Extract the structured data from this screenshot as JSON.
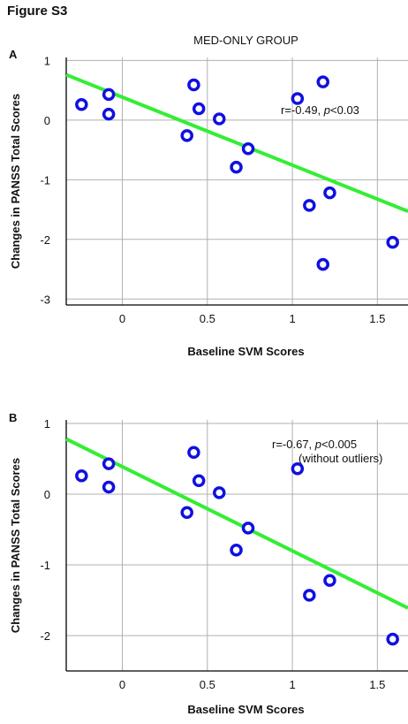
{
  "figure_title": "Figure S3",
  "colors": {
    "points": "#1010e0",
    "fit_line": "#33ee33",
    "grid": "#b0b0b0",
    "axis": "#000000"
  },
  "chart_data": [
    {
      "type": "scatter",
      "panel_label": "A",
      "title": "MED-ONLY GROUP",
      "xlabel": "Baseline SVM Scores",
      "ylabel": "Changes in PANSS Total Scores",
      "xlim": [
        -0.33,
        1.68
      ],
      "ylim": [
        -3.1,
        1.05
      ],
      "xticks": [
        0,
        0.5,
        1,
        1.5
      ],
      "xtick_labels": [
        "0",
        "0.5",
        "1",
        "1.5"
      ],
      "yticks": [
        1,
        0,
        -1,
        -2,
        -3
      ],
      "ytick_labels": [
        "1",
        "0",
        "-1",
        "-2",
        "-3"
      ],
      "grid": true,
      "points": [
        {
          "x": -0.24,
          "y": 0.26
        },
        {
          "x": -0.08,
          "y": 0.43
        },
        {
          "x": -0.08,
          "y": 0.1
        },
        {
          "x": 0.38,
          "y": -0.26
        },
        {
          "x": 0.42,
          "y": 0.59
        },
        {
          "x": 0.45,
          "y": 0.19
        },
        {
          "x": 0.57,
          "y": 0.02
        },
        {
          "x": 0.67,
          "y": -0.79
        },
        {
          "x": 0.74,
          "y": -0.48
        },
        {
          "x": 1.03,
          "y": 0.36
        },
        {
          "x": 1.1,
          "y": -1.43
        },
        {
          "x": 1.18,
          "y": 0.64
        },
        {
          "x": 1.18,
          "y": -2.42
        },
        {
          "x": 1.22,
          "y": -1.22
        },
        {
          "x": 1.59,
          "y": -2.05
        }
      ],
      "fit_line": {
        "x": [
          -0.33,
          1.68
        ],
        "y": [
          0.76,
          -1.53
        ]
      },
      "annotation": {
        "prefix": "r=-0.49, ",
        "p_symbol": "p",
        "suffix": "<0.03"
      }
    },
    {
      "type": "scatter",
      "panel_label": "B",
      "title": "",
      "xlabel": "Baseline SVM Scores",
      "ylabel": "Changes in PANSS Total Scores",
      "xlim": [
        -0.33,
        1.68
      ],
      "ylim": [
        -2.5,
        1.05
      ],
      "xticks": [
        0,
        0.5,
        1,
        1.5
      ],
      "xtick_labels": [
        "0",
        "0.5",
        "1",
        "1.5"
      ],
      "yticks": [
        1,
        0,
        -1,
        -2
      ],
      "ytick_labels": [
        "1",
        "0",
        "-1",
        "-2"
      ],
      "grid": true,
      "points": [
        {
          "x": -0.24,
          "y": 0.26
        },
        {
          "x": -0.08,
          "y": 0.43
        },
        {
          "x": -0.08,
          "y": 0.1
        },
        {
          "x": 0.38,
          "y": -0.26
        },
        {
          "x": 0.42,
          "y": 0.59
        },
        {
          "x": 0.45,
          "y": 0.19
        },
        {
          "x": 0.57,
          "y": 0.02
        },
        {
          "x": 0.67,
          "y": -0.79
        },
        {
          "x": 0.74,
          "y": -0.48
        },
        {
          "x": 1.03,
          "y": 0.36
        },
        {
          "x": 1.1,
          "y": -1.43
        },
        {
          "x": 1.22,
          "y": -1.22
        },
        {
          "x": 1.59,
          "y": -2.05
        }
      ],
      "fit_line": {
        "x": [
          -0.33,
          1.68
        ],
        "y": [
          0.78,
          -1.61
        ]
      },
      "annotation": {
        "prefix": "r=-0.67, ",
        "p_symbol": "p",
        "suffix": "<0.005",
        "line2": "(without outliers)"
      }
    }
  ]
}
